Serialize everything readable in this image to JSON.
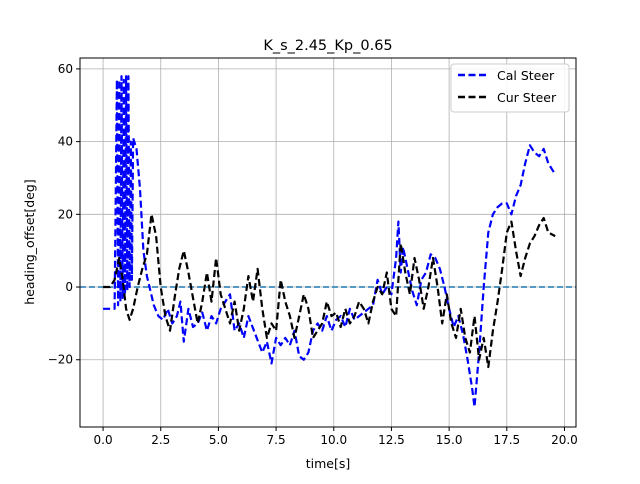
{
  "chart_data": {
    "type": "line",
    "title": "K_s_2.45_Kp_0.65",
    "xlabel": "time[s]",
    "ylabel": "heading_offset[deg]",
    "xlim": [
      -1.0,
      20.5
    ],
    "ylim": [
      -38.5,
      63.0
    ],
    "xticks": [
      0.0,
      2.5,
      5.0,
      7.5,
      10.0,
      12.5,
      15.0,
      17.5,
      20.0
    ],
    "xtick_labels": [
      "0.0",
      "2.5",
      "5.0",
      "7.5",
      "10.0",
      "12.5",
      "15.0",
      "17.5",
      "20.0"
    ],
    "yticks": [
      -20,
      0,
      20,
      40,
      60
    ],
    "ytick_labels": [
      "−20",
      "0",
      "20",
      "40",
      "60"
    ],
    "grid": true,
    "legend_position": "top-right",
    "reference_line": {
      "y": 0,
      "color": "#1f77b4",
      "style": "dashed"
    },
    "series": [
      {
        "name": "Cal Steer",
        "color": "#0000ff",
        "style": "dashed",
        "x": [
          0.0,
          0.5,
          0.6,
          0.65,
          0.7,
          0.75,
          0.8,
          0.85,
          0.9,
          0.95,
          1.0,
          1.05,
          1.1,
          1.15,
          1.2,
          1.25,
          1.3,
          1.45,
          1.6,
          1.75,
          1.9,
          2.05,
          2.2,
          2.4,
          2.6,
          2.8,
          3.0,
          3.2,
          3.35,
          3.5,
          3.7,
          3.9,
          4.1,
          4.3,
          4.5,
          4.7,
          4.9,
          5.1,
          5.3,
          5.5,
          5.7,
          5.9,
          6.1,
          6.3,
          6.6,
          6.9,
          7.1,
          7.3,
          7.5,
          7.7,
          7.9,
          8.1,
          8.3,
          8.5,
          8.7,
          8.9,
          9.1,
          9.3,
          9.5,
          9.7,
          9.9,
          10.1,
          10.3,
          10.5,
          10.7,
          10.9,
          11.1,
          11.3,
          11.5,
          11.7,
          11.9,
          12.1,
          12.3,
          12.5,
          12.7,
          12.8,
          12.9,
          13.0,
          13.2,
          13.4,
          13.6,
          13.8,
          14.0,
          14.2,
          14.4,
          14.6,
          14.8,
          15.0,
          15.2,
          15.4,
          15.6,
          15.8,
          16.0,
          16.1,
          16.3,
          16.5,
          16.7,
          16.9,
          17.1,
          17.3,
          17.5,
          17.7,
          17.9,
          18.1,
          18.3,
          18.5,
          18.7,
          18.9,
          19.1,
          19.3,
          19.6
        ],
        "y": [
          -6,
          -6,
          57,
          -5,
          57,
          -4,
          58,
          -3,
          57,
          -2,
          58,
          -1,
          58,
          0,
          40,
          2,
          41,
          38,
          27,
          10,
          3,
          -1,
          -5,
          -8,
          -9,
          -6,
          -10,
          -8,
          -4,
          -15,
          -6,
          -11,
          -10,
          -7,
          -12,
          -8,
          -10,
          -6,
          -4,
          -2,
          -12,
          -10,
          -14,
          -8,
          -13,
          -18,
          -15,
          -21,
          -14,
          -16,
          -14,
          -16,
          -12,
          -19,
          -20,
          -18,
          -12,
          -10,
          -12,
          -8,
          -12,
          -9,
          -8,
          -11,
          -6,
          -9,
          -8,
          -7,
          -6,
          -5,
          2,
          -2,
          0,
          -2,
          8,
          18,
          4,
          11,
          5,
          -1,
          -5,
          2,
          4,
          9,
          8,
          5,
          0,
          -6,
          -11,
          -8,
          -13,
          -20,
          -28,
          -33,
          -18,
          0,
          15,
          20,
          22,
          23,
          23,
          20,
          25,
          28,
          34,
          39,
          37,
          36,
          38,
          34,
          31
        ]
      },
      {
        "name": "Cur Steer",
        "color": "#000000",
        "style": "dashed",
        "x": [
          0.0,
          0.3,
          0.5,
          0.7,
          0.85,
          1.0,
          1.15,
          1.3,
          1.5,
          1.7,
          1.9,
          2.1,
          2.3,
          2.5,
          2.7,
          2.9,
          3.1,
          3.3,
          3.5,
          3.7,
          3.9,
          4.1,
          4.3,
          4.5,
          4.7,
          4.9,
          5.1,
          5.3,
          5.5,
          5.7,
          5.9,
          6.1,
          6.3,
          6.5,
          6.7,
          6.9,
          7.1,
          7.3,
          7.5,
          7.7,
          7.9,
          8.1,
          8.3,
          8.5,
          8.7,
          8.9,
          9.1,
          9.3,
          9.5,
          9.7,
          9.9,
          10.1,
          10.3,
          10.5,
          10.7,
          10.9,
          11.1,
          11.3,
          11.5,
          11.7,
          11.9,
          12.1,
          12.3,
          12.5,
          12.7,
          12.9,
          13.1,
          13.3,
          13.5,
          13.7,
          13.9,
          14.1,
          14.3,
          14.5,
          14.7,
          14.9,
          15.1,
          15.3,
          15.5,
          15.7,
          15.9,
          16.1,
          16.3,
          16.5,
          16.7,
          16.9,
          17.1,
          17.3,
          17.5,
          17.7,
          17.9,
          18.1,
          18.3,
          18.5,
          18.7,
          18.9,
          19.1,
          19.3,
          19.6
        ],
        "y": [
          0,
          0,
          2,
          8,
          2,
          -6,
          -9,
          -6,
          0,
          5,
          9,
          20,
          14,
          0,
          -8,
          -12,
          -3,
          5,
          10,
          4,
          -3,
          -10,
          -4,
          4,
          -4,
          8,
          -2,
          -6,
          -10,
          -4,
          -12,
          -6,
          3,
          -4,
          5,
          -6,
          -14,
          -10,
          -12,
          2,
          -4,
          -8,
          -14,
          -8,
          -2,
          -6,
          -14,
          -12,
          -10,
          -4,
          -8,
          -7,
          -11,
          -6,
          -10,
          -8,
          -4,
          -6,
          -10,
          -4,
          0,
          -2,
          4,
          -6,
          -8,
          12,
          4,
          -2,
          8,
          2,
          -6,
          0,
          8,
          0,
          -10,
          -2,
          -10,
          -14,
          -6,
          -14,
          -18,
          -8,
          -20,
          -14,
          -22,
          -12,
          -4,
          5,
          15,
          18,
          10,
          3,
          8,
          12,
          14,
          17,
          19,
          15,
          14
        ]
      }
    ]
  }
}
